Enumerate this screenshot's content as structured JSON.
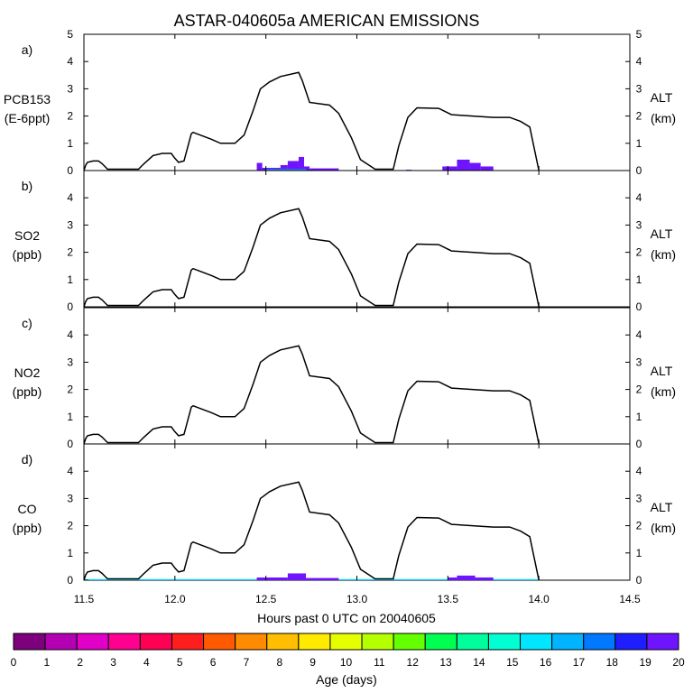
{
  "chart_data": {
    "type": "line",
    "title": "ASTAR-040605a AMERICAN EMISSIONS",
    "xlabel": "Hours past 0 UTC on 20040605",
    "xlim": [
      11.5,
      14.5
    ],
    "x_ticks": [
      "11.5",
      "12.0",
      "12.5",
      "13.0",
      "13.5",
      "14.0",
      "14.5"
    ],
    "ylim": [
      0,
      5
    ],
    "y_ticks": [
      "0",
      "1",
      "2",
      "3",
      "4",
      "5"
    ],
    "right_axis_label": [
      "ALT",
      "(km)"
    ],
    "altitude_km": {
      "x": [
        11.5,
        11.51,
        11.52,
        11.55,
        11.58,
        11.6,
        11.63,
        11.7,
        11.8,
        11.83,
        11.88,
        11.93,
        11.98,
        12.0,
        12.02,
        12.05,
        12.09,
        12.1,
        12.2,
        12.25,
        12.33,
        12.38,
        12.43,
        12.47,
        12.52,
        12.58,
        12.68,
        12.7,
        12.74,
        12.85,
        12.9,
        12.97,
        13.02,
        13.1,
        13.17,
        13.2,
        13.23,
        13.28,
        13.33,
        13.45,
        13.52,
        13.75,
        13.84,
        13.9,
        13.95,
        14.0
      ],
      "y": [
        0,
        0.2,
        0.3,
        0.35,
        0.35,
        0.25,
        0.05,
        0.05,
        0.05,
        0.25,
        0.55,
        0.63,
        0.63,
        0.45,
        0.3,
        0.35,
        1.35,
        1.4,
        1.15,
        1.0,
        1.0,
        1.3,
        2.2,
        3.0,
        3.25,
        3.45,
        3.6,
        3.3,
        2.5,
        2.4,
        2.1,
        1.2,
        0.4,
        0.05,
        0.05,
        0.05,
        0.9,
        1.95,
        2.3,
        2.28,
        2.05,
        1.95,
        1.95,
        1.8,
        1.6,
        0
      ]
    },
    "color_legend": {
      "label": "Age (days)",
      "ticks": [
        "0",
        "1",
        "2",
        "3",
        "4",
        "5",
        "6",
        "7",
        "8",
        "9",
        "10",
        "11",
        "12",
        "13",
        "14",
        "15",
        "16",
        "17",
        "18",
        "19",
        "20"
      ],
      "colors": [
        "#7d007d",
        "#b200b2",
        "#e000c8",
        "#ff0090",
        "#ff0055",
        "#ff1e1e",
        "#ff5a00",
        "#ff8c00",
        "#ffbf00",
        "#ffea00",
        "#e6ff00",
        "#b4ff00",
        "#64ff00",
        "#00ff50",
        "#00ff9c",
        "#00ffd2",
        "#00e6ff",
        "#00b4ff",
        "#0078ff",
        "#1e1eff",
        "#6e14ff"
      ]
    },
    "panels": [
      {
        "tag": "a)",
        "label": [
          "PCB153",
          "(E-6ppt)"
        ],
        "bars": [
          {
            "x0": 12.45,
            "x1": 12.48,
            "h": 0.28,
            "color": "#6e14ff"
          },
          {
            "x0": 12.48,
            "x1": 12.58,
            "h": 0.1,
            "color": "#6e14ff"
          },
          {
            "x0": 12.58,
            "x1": 12.62,
            "h": 0.2,
            "color": "#6e14ff"
          },
          {
            "x0": 12.62,
            "x1": 12.68,
            "h": 0.35,
            "color": "#6e14ff"
          },
          {
            "x0": 12.68,
            "x1": 12.71,
            "h": 0.5,
            "color": "#6e14ff"
          },
          {
            "x0": 12.71,
            "x1": 12.74,
            "h": 0.15,
            "color": "#6e14ff"
          },
          {
            "x0": 12.74,
            "x1": 12.9,
            "h": 0.08,
            "color": "#6e14ff"
          },
          {
            "x0": 12.5,
            "x1": 12.72,
            "h": 0.05,
            "color": "#00b4ff"
          },
          {
            "x0": 13.27,
            "x1": 13.3,
            "h": 0.03,
            "color": "#6e14ff"
          },
          {
            "x0": 13.47,
            "x1": 13.55,
            "h": 0.15,
            "color": "#6e14ff"
          },
          {
            "x0": 13.55,
            "x1": 13.62,
            "h": 0.4,
            "color": "#6e14ff"
          },
          {
            "x0": 13.62,
            "x1": 13.68,
            "h": 0.28,
            "color": "#6e14ff"
          },
          {
            "x0": 13.68,
            "x1": 13.75,
            "h": 0.15,
            "color": "#6e14ff"
          }
        ]
      },
      {
        "tag": "b)",
        "label": [
          "SO2",
          "(ppb)"
        ],
        "bars": []
      },
      {
        "tag": "c)",
        "label": [
          "NO2",
          "(ppb)"
        ],
        "bars": []
      },
      {
        "tag": "d)",
        "label": [
          "CO",
          "(ppb)"
        ],
        "bars": [
          {
            "x0": 11.5,
            "x1": 12.45,
            "h": 0.04,
            "color": "#00d8ff"
          },
          {
            "x0": 12.45,
            "x1": 12.62,
            "h": 0.1,
            "color": "#6e14ff"
          },
          {
            "x0": 12.62,
            "x1": 12.72,
            "h": 0.25,
            "color": "#6e14ff"
          },
          {
            "x0": 12.72,
            "x1": 12.9,
            "h": 0.08,
            "color": "#6e14ff"
          },
          {
            "x0": 12.9,
            "x1": 13.5,
            "h": 0.04,
            "color": "#00d8ff"
          },
          {
            "x0": 13.5,
            "x1": 13.55,
            "h": 0.1,
            "color": "#6e14ff"
          },
          {
            "x0": 13.55,
            "x1": 13.65,
            "h": 0.17,
            "color": "#6e14ff"
          },
          {
            "x0": 13.65,
            "x1": 13.75,
            "h": 0.1,
            "color": "#6e14ff"
          },
          {
            "x0": 13.75,
            "x1": 14.0,
            "h": 0.04,
            "color": "#00d8ff"
          }
        ]
      }
    ]
  }
}
